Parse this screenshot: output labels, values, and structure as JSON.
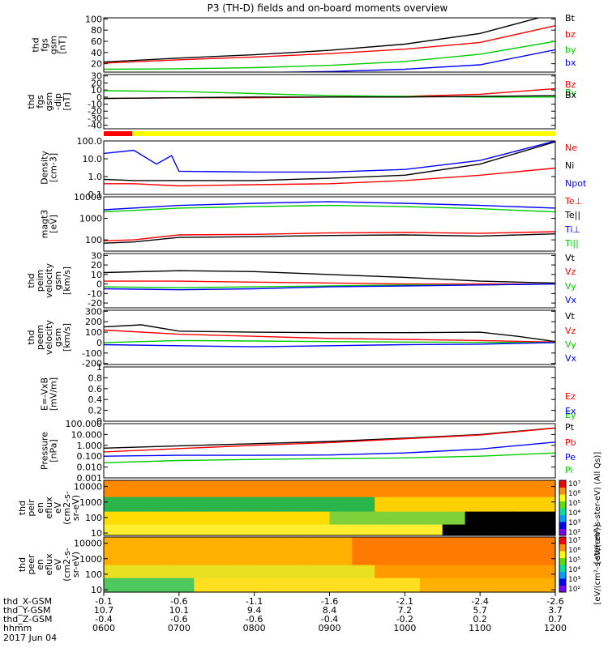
{
  "title": "P3 (TH-D) fields and on-board moments overview",
  "chart_data": [
    {
      "type": "line",
      "ylabel": [
        "thd",
        "fgs",
        "gsm",
        "[nT]"
      ],
      "yticks": [
        20,
        40,
        60,
        80,
        100
      ],
      "ylim": [
        5,
        102
      ],
      "scale": "linear",
      "series": [
        {
          "name": "Bt",
          "color": "#000000",
          "x": [
            0,
            1,
            2,
            3,
            4,
            5,
            6
          ],
          "values": [
            23,
            30,
            36,
            44,
            55,
            74,
            110
          ]
        },
        {
          "name": "bz",
          "color": "#ff0000",
          "x": [
            0,
            1,
            2,
            3,
            4,
            5,
            6
          ],
          "values": [
            21,
            27,
            32,
            38,
            46,
            58,
            88
          ]
        },
        {
          "name": "by",
          "color": "#00cc00",
          "x": [
            0,
            1,
            2,
            3,
            4,
            5,
            6
          ],
          "values": [
            10,
            11,
            13,
            17,
            24,
            37,
            60
          ]
        },
        {
          "name": "bx",
          "color": "#0000ff",
          "x": [
            0,
            1,
            2,
            3,
            4,
            5,
            6
          ],
          "values": [
            2,
            3,
            4,
            6,
            10,
            18,
            45
          ]
        }
      ]
    },
    {
      "type": "line",
      "ylabel": [
        "thd",
        "fgs",
        "gsm",
        "-dip",
        "[nT]"
      ],
      "yticks": [
        -40,
        -30,
        -20,
        -10,
        0,
        10,
        20,
        30
      ],
      "ylim": [
        -45,
        32
      ],
      "scale": "linear",
      "series": [
        {
          "name": "Bz",
          "color": "#ff0000",
          "x": [
            0,
            1,
            2,
            3,
            4,
            5,
            6
          ],
          "values": [
            -2,
            -1,
            -1,
            0,
            1,
            4,
            12
          ]
        },
        {
          "name": "By",
          "color": "#00cc00",
          "x": [
            0,
            1,
            2,
            3,
            4,
            5,
            6
          ],
          "values": [
            9,
            8,
            5,
            2,
            1,
            0,
            0
          ]
        },
        {
          "name": "Bx",
          "color": "#000000",
          "x": [
            0,
            1,
            2,
            3,
            4,
            5,
            6
          ],
          "values": [
            -2,
            -1,
            0,
            0,
            0,
            1,
            2
          ]
        }
      ]
    },
    {
      "type": "line",
      "ylabel": [
        "Density",
        "[cm-3]"
      ],
      "yticks": [
        0.1,
        1.0,
        10.0,
        100.0
      ],
      "ylim": [
        0.1,
        100
      ],
      "scale": "log",
      "series": [
        {
          "name": "Ne",
          "color": "#ff0000",
          "x": [
            0,
            0.4,
            1,
            2,
            3,
            4,
            5,
            6
          ],
          "values": [
            0.4,
            0.4,
            0.3,
            0.35,
            0.4,
            0.6,
            1.2,
            3
          ]
        },
        {
          "name": "Ni",
          "color": "#000000",
          "x": [
            0,
            0.4,
            1,
            2,
            3,
            4,
            5,
            6
          ],
          "values": [
            0.7,
            0.6,
            0.6,
            0.6,
            0.8,
            1.2,
            5,
            90
          ]
        },
        {
          "name": "Npot",
          "color": "#0000ff",
          "x": [
            0,
            0.4,
            0.7,
            0.9,
            1,
            2,
            3,
            4,
            5,
            6
          ],
          "values": [
            20,
            30,
            5,
            15,
            2,
            1.8,
            1.8,
            2.5,
            8,
            100
          ]
        }
      ]
    },
    {
      "type": "line",
      "ylabel": [
        "magt3",
        "[eV]"
      ],
      "yticks": [
        100,
        1000,
        10000
      ],
      "ylim": [
        30,
        10000
      ],
      "scale": "log",
      "series": [
        {
          "name": "Te⊥",
          "color": "#ff0000",
          "x": [
            0,
            0.4,
            1,
            2,
            3,
            4,
            5,
            6
          ],
          "values": [
            90,
            100,
            170,
            180,
            210,
            220,
            200,
            240
          ]
        },
        {
          "name": "Te||",
          "color": "#000000",
          "x": [
            0,
            0.4,
            1,
            2,
            3,
            4,
            5,
            6
          ],
          "values": [
            70,
            80,
            130,
            140,
            160,
            170,
            150,
            190
          ]
        },
        {
          "name": "Ti⊥",
          "color": "#0000ff",
          "x": [
            0,
            1,
            2,
            3,
            4,
            5,
            6
          ],
          "values": [
            2500,
            4000,
            5000,
            6000,
            5000,
            4000,
            3000
          ]
        },
        {
          "name": "Ti||",
          "color": "#00cc00",
          "x": [
            0,
            1,
            2,
            3,
            4,
            5,
            6
          ],
          "values": [
            2000,
            3000,
            3500,
            4000,
            3500,
            2800,
            2000
          ]
        }
      ]
    },
    {
      "type": "line",
      "ylabel": [
        "thd",
        "peim",
        "velocity",
        "gsm",
        "[km/s]"
      ],
      "yticks": [
        -20,
        -10,
        0,
        10,
        20,
        30
      ],
      "ylim": [
        -25,
        32
      ],
      "scale": "linear",
      "series": [
        {
          "name": "Vt",
          "color": "#000000",
          "x": [
            0,
            1,
            2,
            3,
            4,
            5,
            6
          ],
          "values": [
            12,
            14,
            13,
            10,
            7,
            3,
            1
          ]
        },
        {
          "name": "Vz",
          "color": "#ff0000",
          "x": [
            0,
            1,
            2,
            3,
            4,
            5,
            6
          ],
          "values": [
            3,
            3,
            2,
            1,
            0,
            0,
            0
          ]
        },
        {
          "name": "Vy",
          "color": "#00cc00",
          "x": [
            0,
            1,
            2,
            3,
            4,
            5,
            6
          ],
          "values": [
            -3,
            -4,
            -3,
            -2,
            -1,
            -1,
            0
          ]
        },
        {
          "name": "Vx",
          "color": "#0000ff",
          "x": [
            0,
            1,
            2,
            3,
            4,
            5,
            6
          ],
          "values": [
            -5,
            -6,
            -5,
            -3,
            -2,
            -1,
            0
          ]
        }
      ]
    },
    {
      "type": "line",
      "ylabel": [
        "thd",
        "peem",
        "velocity",
        "gsm",
        "[km/s]"
      ],
      "yticks": [
        -200,
        -100,
        0,
        100,
        200,
        300
      ],
      "ylim": [
        -210,
        310
      ],
      "scale": "linear",
      "series": [
        {
          "name": "Vt",
          "color": "#000000",
          "x": [
            0,
            0.5,
            1,
            2,
            3,
            4,
            5,
            5.5,
            6
          ],
          "values": [
            150,
            170,
            110,
            100,
            95,
            95,
            100,
            60,
            10
          ]
        },
        {
          "name": "Vz",
          "color": "#ff0000",
          "x": [
            0,
            1,
            2,
            3,
            4,
            5,
            6
          ],
          "values": [
            120,
            80,
            60,
            40,
            30,
            20,
            5
          ]
        },
        {
          "name": "Vy",
          "color": "#00cc00",
          "x": [
            0,
            1,
            2,
            3,
            4,
            5,
            6
          ],
          "values": [
            0,
            20,
            15,
            10,
            5,
            2,
            0
          ]
        },
        {
          "name": "Vx",
          "color": "#0000ff",
          "x": [
            0,
            1,
            2,
            3,
            4,
            5,
            6
          ],
          "values": [
            -20,
            -30,
            -40,
            -30,
            -20,
            -15,
            0
          ]
        }
      ]
    },
    {
      "type": "line",
      "ylabel": [
        "E=-VxB",
        "[mV/m]"
      ],
      "yticks": [
        0.0,
        0.2,
        0.4,
        0.6,
        0.8,
        1.0
      ],
      "ylim": [
        0,
        1
      ],
      "scale": "linear",
      "series": [
        {
          "name": "Ez",
          "color": "#ff0000",
          "x": [],
          "values": []
        },
        {
          "name": "Ey",
          "color": "#00cc00",
          "x": [],
          "values": []
        },
        {
          "name": "Ex",
          "color": "#0000ff",
          "x": [],
          "values": []
        }
      ]
    },
    {
      "type": "line",
      "ylabel": [
        "Pressure",
        "[nPa]"
      ],
      "yticks": [
        0.001,
        0.01,
        0.1,
        1.0,
        10.0,
        100.0
      ],
      "ytick_labels": [
        "0.001",
        "0.010",
        "0.100",
        "1.000",
        "10.000",
        "100.000"
      ],
      "ylim": [
        0.001,
        100
      ],
      "scale": "log",
      "series": [
        {
          "name": "Pt",
          "color": "#000000",
          "x": [
            0,
            1,
            2,
            3,
            4,
            5,
            6
          ],
          "values": [
            0.55,
            0.9,
            1.4,
            2.3,
            4.5,
            10,
            40
          ]
        },
        {
          "name": "Pb",
          "color": "#ff0000",
          "x": [
            0,
            1,
            2,
            3,
            4,
            5,
            6
          ],
          "values": [
            0.25,
            0.5,
            1.0,
            1.8,
            4,
            9,
            38
          ]
        },
        {
          "name": "Pe",
          "color": "#0000ff",
          "x": [
            0,
            1,
            2,
            3,
            4,
            5,
            6
          ],
          "values": [
            0.1,
            0.12,
            0.12,
            0.13,
            0.2,
            0.45,
            2
          ]
        },
        {
          "name": "Pi",
          "color": "#00cc00",
          "x": [
            0,
            1,
            2,
            3,
            4,
            5,
            6
          ],
          "values": [
            0.025,
            0.04,
            0.05,
            0.06,
            0.07,
            0.1,
            0.2
          ]
        }
      ]
    },
    {
      "type": "heatmap",
      "ylabel": [
        "thd",
        "peir",
        "en",
        "eflux",
        "eV",
        "(cm2-s-",
        "sr-eV)"
      ],
      "yticks": [
        10,
        100,
        1000,
        10000
      ],
      "ylim": [
        7,
        25000
      ],
      "scale": "log"
    },
    {
      "type": "heatmap",
      "ylabel": [
        "thd",
        "peer",
        "en",
        "eflux",
        "eV",
        "(cm2-s-",
        "sr-eV)"
      ],
      "yticks": [
        10,
        100,
        1000,
        10000
      ],
      "ylim": [
        7,
        25000
      ],
      "scale": "log"
    }
  ],
  "colorbars": [
    {
      "title": "eV/(cm²-s-ster-eV) (All Qs)",
      "ticks": [
        "10²",
        "10³",
        "10⁴",
        "10⁵",
        "10⁶",
        "10⁷"
      ]
    },
    {
      "title": "eV/(cm²-s-ster-eV)",
      "ticks": [
        "10²",
        "10³",
        "10⁴",
        "10⁵",
        "10⁶",
        "10⁷"
      ]
    }
  ],
  "xaxis": {
    "row_labels": [
      "thd_X-GSM",
      "thd_Y-GSM",
      "thd_Z-GSM",
      "hhmm",
      "2017 Jun 04"
    ],
    "columns": [
      [
        "-0.1",
        "10.7",
        "-0.4",
        "0600"
      ],
      [
        "-0.6",
        "10.1",
        "-0.6",
        "0700"
      ],
      [
        "-1.1",
        "9.4",
        "-0.6",
        "0800"
      ],
      [
        "-1.6",
        "8.4",
        "-0.4",
        "0900"
      ],
      [
        "-2.1",
        "7.2",
        "-0.2",
        "1000"
      ],
      [
        "-2.4",
        "5.7",
        "0.2",
        "1100"
      ],
      [
        "-2.6",
        "3.7",
        "0.7",
        "1200"
      ]
    ]
  },
  "colors": {
    "red": "#ff0000",
    "yellow": "#ffff00",
    "green": "#00cc00",
    "blue": "#0000ff"
  }
}
